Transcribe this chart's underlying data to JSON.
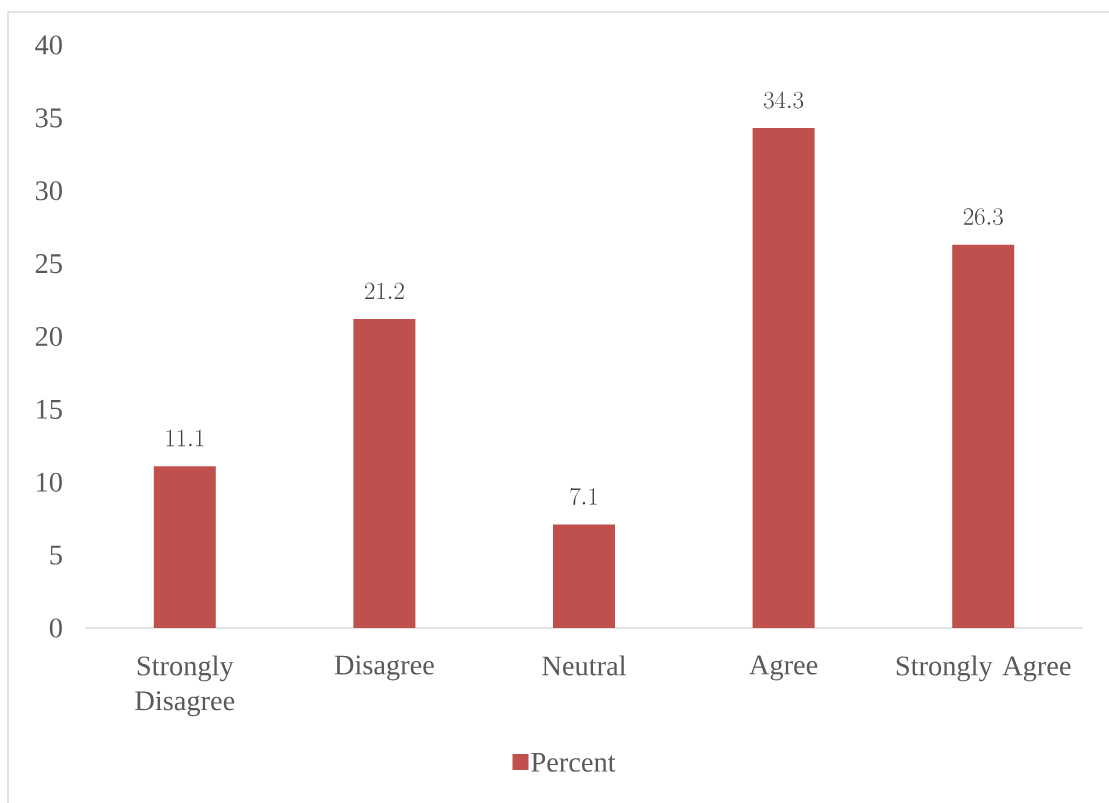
{
  "chart_data": {
    "type": "bar",
    "categories": [
      "Strongly Disagree",
      "Disagree",
      "Neutral",
      "Agree",
      "Strongly Agree"
    ],
    "series": [
      {
        "name": "Percent",
        "color": "#c0504d",
        "values": [
          11.1,
          21.2,
          7.1,
          34.3,
          26.3
        ]
      }
    ],
    "ylim": [
      0,
      40
    ],
    "yticks": [
      0,
      5,
      10,
      15,
      20,
      25,
      30,
      35,
      40
    ],
    "data_labels": true,
    "legend": "bottom"
  }
}
